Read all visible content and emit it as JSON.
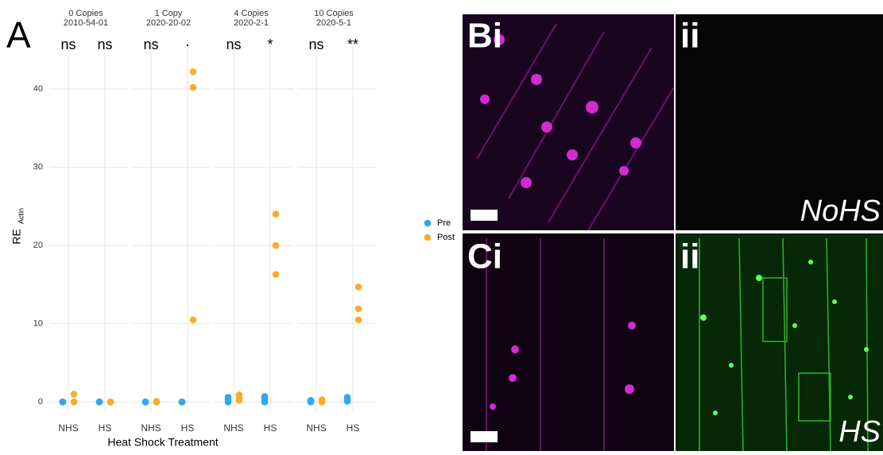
{
  "chart_data": {
    "type": "scatter",
    "panel_label": "A",
    "y_label": "RE",
    "y_label_subscript": "Actin",
    "x_label": "Heat Shock Treatment",
    "ylim": [
      -1.4,
      46.3
    ],
    "yticks": [
      0,
      10,
      20,
      30,
      40
    ],
    "grid": true,
    "legend": "right",
    "facets": [
      {
        "title": "0 Copies",
        "subtitle": "2010-54-01",
        "categories": [
          "NHS",
          "HS"
        ],
        "significance": [
          "ns",
          "ns"
        ],
        "series": [
          {
            "name": "Pre",
            "color": "#2ea8ee",
            "values": [
              [
                0,
                0,
                0
              ],
              [
                0,
                0,
                0
              ]
            ]
          },
          {
            "name": "Post",
            "color": "#f8ac2e",
            "values": [
              [
                1.0,
                0,
                0
              ],
              [
                0,
                0,
                0
              ]
            ]
          }
        ]
      },
      {
        "title": "1 Copy",
        "subtitle": "2020-20-02",
        "categories": [
          "NHS",
          "HS"
        ],
        "significance": [
          "ns",
          "·"
        ],
        "series": [
          {
            "name": "Pre",
            "color": "#2ea8ee",
            "values": [
              [
                0,
                0,
                0
              ],
              [
                0,
                0,
                0
              ]
            ]
          },
          {
            "name": "Post",
            "color": "#f8ac2e",
            "values": [
              [
                0.1,
                0,
                0
              ],
              [
                42.2,
                40.2,
                10.5
              ]
            ]
          }
        ]
      },
      {
        "title": "4 Copies",
        "subtitle": "2020-2-1",
        "categories": [
          "NHS",
          "HS"
        ],
        "significance": [
          "ns",
          "*"
        ],
        "series": [
          {
            "name": "Pre",
            "color": "#2ea8ee",
            "values": [
              [
                0.6,
                0.3,
                0
              ],
              [
                0.7,
                0.4,
                0
              ]
            ]
          },
          {
            "name": "Post",
            "color": "#f8ac2e",
            "values": [
              [
                0.9,
                0.5,
                0.2
              ],
              [
                24,
                20,
                16.3
              ]
            ]
          }
        ]
      },
      {
        "title": "10 Copies",
        "subtitle": "2020-5-1",
        "categories": [
          "NHS",
          "HS"
        ],
        "significance": [
          "ns",
          "**"
        ],
        "series": [
          {
            "name": "Pre",
            "color": "#2ea8ee",
            "values": [
              [
                0.2,
                0.1,
                0
              ],
              [
                0.6,
                0.3,
                0.1
              ]
            ]
          },
          {
            "name": "Post",
            "color": "#f8ac2e",
            "values": [
              [
                0.3,
                0.1,
                0
              ],
              [
                14.7,
                11.9,
                10.5
              ]
            ]
          }
        ]
      }
    ]
  },
  "images": {
    "b_label": "Bi",
    "b_sub_label": "ii",
    "b_condition": "NoHS",
    "c_label": "Ci",
    "c_sub_label": "ii",
    "c_condition": "HS"
  }
}
